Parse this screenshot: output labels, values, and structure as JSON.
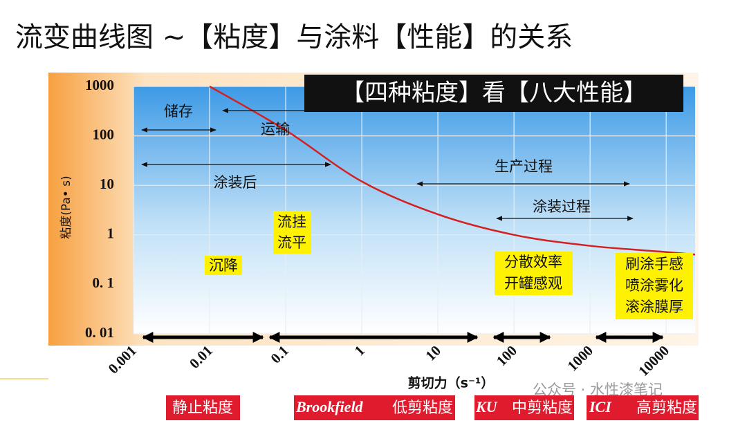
{
  "title": "流变曲线图 ~【粘度】与涂料【性能】的关系",
  "chart_data": {
    "type": "line",
    "subtitle": "【四种粘度】看【八大性能】",
    "x_label": "剪切力（s⁻¹）",
    "y_label": "粘度(Pa• s)",
    "x_log": true,
    "y_log": true,
    "grid": true,
    "xlim": [
      0.001,
      24000
    ],
    "ylim": [
      0.01,
      1000
    ],
    "xticks": [
      0.001,
      0.01,
      0.1,
      1,
      10,
      100,
      1000,
      10000
    ],
    "yticks": [
      {
        "value": 0.01,
        "label": "0. 01"
      },
      {
        "value": 0.1,
        "label": "0. 1"
      },
      1,
      10,
      100,
      1000
    ],
    "color": "#d42020",
    "x": [
      0.01,
      0.1,
      1,
      10,
      100,
      1000,
      10000,
      24000
    ],
    "values": [
      1000,
      130,
      12,
      2.6,
      1,
      0.6,
      0.45,
      0.4
    ],
    "annotations": {
      "storage": "储存",
      "transport": "运输",
      "after_coating": "涂装后",
      "production": "生产过程",
      "coating": "涂装过程",
      "sag": "流挂",
      "leveling": "流平",
      "settling": "沉降",
      "dispersion": "分散效率",
      "can_appearance": "开罐感观",
      "brushing": "刷涂手感",
      "spraying": "喷涂雾化",
      "rolling": "滚涂膜厚"
    },
    "viscosity_ranges": [
      "静止粘度",
      "Brookfield",
      "低剪粘度",
      "KU",
      "中剪粘度",
      "ICI",
      "高剪粘度"
    ]
  },
  "watermark": "公众号 · 水性漆笔记"
}
